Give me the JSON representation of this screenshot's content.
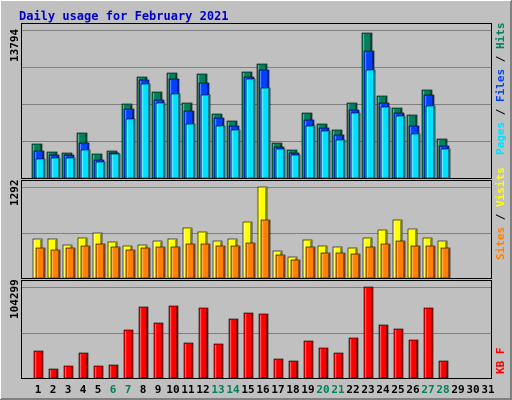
{
  "title": "Daily usage for February 2021",
  "colors": {
    "background": "#c0c0c0",
    "plot_bg": "#c0c0c0",
    "title": "#0000cc",
    "hits": "#00805c",
    "files": "#0040ff",
    "pages": "#00e0ff",
    "visits": "#ffff00",
    "sites": "#ff8000",
    "kbytes": "#ff0000",
    "weekend_day": "#00805c",
    "weekday_day": "#000000"
  },
  "chart_data": [
    {
      "type": "bar",
      "name": "hits-files-pages",
      "ylabel_parts": [
        "Pages",
        " / ",
        "Files",
        " / ",
        "Hits"
      ],
      "ymax_label": "13794",
      "ylim": [
        0,
        13794
      ],
      "x": [
        1,
        2,
        3,
        4,
        5,
        6,
        7,
        8,
        9,
        10,
        11,
        12,
        13,
        14,
        15,
        16,
        17,
        18,
        19,
        20,
        21,
        22,
        23,
        24,
        25,
        26,
        27,
        28
      ],
      "series": [
        {
          "name": "Hits",
          "values": [
            3200,
            2400,
            2300,
            4200,
            2200,
            2500,
            6900,
            9400,
            8000,
            9800,
            7000,
            9700,
            6000,
            5300,
            9900,
            10600,
            3300,
            2600,
            6100,
            5000,
            4500,
            7000,
            13500,
            7600,
            6500,
            5900,
            8200,
            3600
          ]
        },
        {
          "name": "Files",
          "values": [
            2500,
            2100,
            2100,
            3300,
            1700,
            2300,
            6400,
            9100,
            7300,
            9200,
            6200,
            8900,
            5600,
            4800,
            9400,
            10100,
            2900,
            2300,
            5400,
            4700,
            4000,
            6300,
            11800,
            7000,
            6100,
            4800,
            7700,
            3000
          ]
        },
        {
          "name": "Pages",
          "values": [
            1800,
            1900,
            1900,
            2600,
            1500,
            2200,
            5500,
            8800,
            7000,
            7800,
            5000,
            7700,
            4800,
            4500,
            9200,
            8400,
            2700,
            2100,
            4800,
            4400,
            3500,
            6100,
            10100,
            6600,
            5800,
            4100,
            6700,
            2700
          ]
        }
      ]
    },
    {
      "type": "bar",
      "name": "visits-sites",
      "ylabel_parts": [
        "Sites",
        " / ",
        "Visits"
      ],
      "ymax_label": "1292",
      "ylim": [
        0,
        1292
      ],
      "x": [
        1,
        2,
        3,
        4,
        5,
        6,
        7,
        8,
        9,
        10,
        11,
        12,
        13,
        14,
        15,
        16,
        17,
        18,
        19,
        20,
        21,
        22,
        23,
        24,
        25,
        26,
        27,
        28
      ],
      "series": [
        {
          "name": "Visits",
          "values": [
            560,
            560,
            470,
            570,
            640,
            510,
            450,
            470,
            530,
            550,
            710,
            650,
            530,
            560,
            800,
            1292,
            390,
            300,
            540,
            450,
            440,
            420,
            570,
            680,
            830,
            690,
            570,
            530
          ]
        },
        {
          "name": "Sites",
          "values": [
            420,
            400,
            420,
            460,
            480,
            440,
            400,
            420,
            440,
            440,
            480,
            480,
            450,
            460,
            500,
            820,
            320,
            260,
            440,
            360,
            360,
            340,
            440,
            480,
            520,
            460,
            450,
            420
          ]
        }
      ]
    },
    {
      "type": "bar",
      "name": "kbytes",
      "ylabel_parts": [
        "KB F"
      ],
      "ymax_label": "104299",
      "ylim": [
        0,
        104299
      ],
      "x": [
        1,
        2,
        3,
        4,
        5,
        6,
        7,
        8,
        9,
        10,
        11,
        12,
        13,
        14,
        15,
        16,
        17,
        18,
        19,
        20,
        21,
        22,
        23,
        24,
        25,
        26,
        27,
        28
      ],
      "series": [
        {
          "name": "KB F",
          "values": [
            31000,
            10000,
            14000,
            29000,
            14000,
            15000,
            55000,
            81000,
            63000,
            83000,
            40000,
            80000,
            39000,
            68000,
            75000,
            73000,
            22000,
            20000,
            42000,
            34000,
            29000,
            46000,
            104299,
            61000,
            56000,
            44000,
            80000,
            20000
          ]
        }
      ]
    }
  ],
  "x_labels": [
    "1",
    "2",
    "3",
    "4",
    "5",
    "6",
    "7",
    "8",
    "9",
    "10",
    "11",
    "12",
    "13",
    "14",
    "15",
    "16",
    "17",
    "18",
    "19",
    "20",
    "21",
    "22",
    "23",
    "24",
    "25",
    "26",
    "27",
    "28",
    "29",
    "30",
    "31"
  ],
  "weekend_days": [
    6,
    7,
    13,
    14,
    20,
    21,
    27,
    28
  ]
}
